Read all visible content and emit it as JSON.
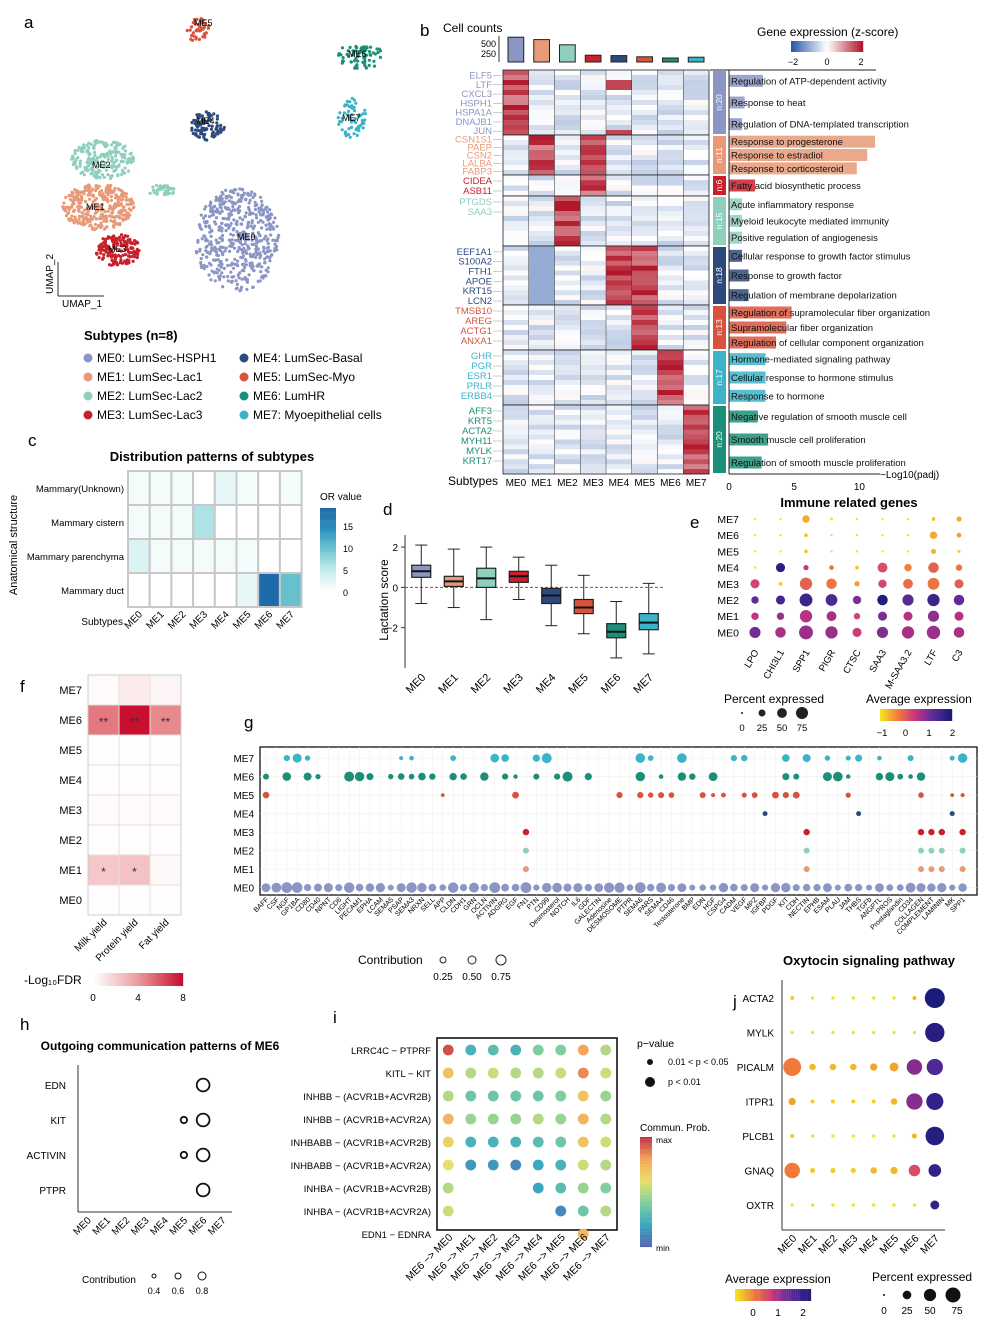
{
  "panel_labels": {
    "a": "a",
    "b": "b",
    "c": "c",
    "d": "d",
    "e": "e",
    "f": "f",
    "g": "g",
    "h": "h",
    "i": "i",
    "j": "j"
  },
  "umap": {
    "axis_x": "UMAP_1",
    "axis_y": "UMAP_2",
    "cluster_labels": [
      "ME0",
      "ME1",
      "ME2",
      "ME3",
      "ME4",
      "ME5",
      "ME6",
      "ME7"
    ]
  },
  "subtypes": {
    "title": "Subtypes (n=8)",
    "items": [
      {
        "label": "ME0: LumSec-HSPH1",
        "color": "#8b96c4"
      },
      {
        "label": "ME1: LumSec-Lac1",
        "color": "#e89a78"
      },
      {
        "label": "ME2: LumSec-Lac2",
        "color": "#8fcfbe"
      },
      {
        "label": "ME3: LumSec-Lac3",
        "color": "#c9202b"
      },
      {
        "label": "ME4: LumSec-Basal",
        "color": "#2e4a7d"
      },
      {
        "label": "ME5: LumSec-Myo",
        "color": "#d9533c"
      },
      {
        "label": "ME6: LumHR",
        "color": "#1b8f77"
      },
      {
        "label": "ME7: Myoepithelial cells",
        "color": "#3bb3c8"
      }
    ]
  },
  "heatmap_b": {
    "cell_counts_label": "Cell counts",
    "count_ticks": [
      "500",
      "250"
    ],
    "expr_title": "Gene expression (z-score)",
    "expr_ticks": [
      "−2",
      "0",
      "2"
    ],
    "subtypes_label": "Subtypes",
    "columns": [
      "ME0",
      "ME1",
      "ME2",
      "ME3",
      "ME4",
      "ME5",
      "ME6",
      "ME7"
    ],
    "xlabel": "−Log10(padj)",
    "xticks": [
      "0",
      "5",
      "10"
    ],
    "gene_groups": [
      {
        "n": "n:20",
        "color": "#8b96c4",
        "genes": [
          "ELF5",
          "LTF",
          "CXCL3",
          "HSPH1",
          "HSPA1A",
          "DNAJB1",
          "JUN"
        ],
        "terms": [
          "Regulation of ATP-dependent activity",
          "Response to heat",
          "Regulation of DNA-templated transcription"
        ],
        "pvals": [
          2.6,
          1.2,
          1.0
        ]
      },
      {
        "n": "n:11",
        "color": "#e89a78",
        "genes": [
          "CSN1S1",
          "PAEP",
          "CSN2",
          "LALBA",
          "FABP3"
        ],
        "terms": [
          "Response to progesterone",
          "Response to estradiol",
          "Response to corticosteroid"
        ],
        "pvals": [
          11.2,
          10.6,
          9.8
        ]
      },
      {
        "n": "n:6",
        "color": "#c9202b",
        "genes": [
          "CIDEA",
          "ASB11"
        ],
        "terms": [
          "Fatty acid biosynthetic process"
        ],
        "pvals": [
          2.0
        ]
      },
      {
        "n": "n:15",
        "color": "#8fcfbe",
        "genes": [
          "PTGDS",
          "SAA3"
        ],
        "terms": [
          "Acute inflammatory response",
          "Myeloid leukocyte mediated immunity",
          "Positive regulation of angiogenesis"
        ],
        "pvals": [
          1.0,
          1.0,
          1.0
        ]
      },
      {
        "n": "n:18",
        "color": "#2e4a7d",
        "genes": [
          "EEF1A1",
          "S100A2",
          "FTH1",
          "APOE",
          "KRT15",
          "LCN2"
        ],
        "terms": [
          "Cellular response to growth factor stimulus",
          "Response to growth factor",
          "Regulation of membrane depolarization"
        ],
        "pvals": [
          1.0,
          1.5,
          1.5
        ]
      },
      {
        "n": "n:13",
        "color": "#d9533c",
        "genes": [
          "TMSB10",
          "AREG",
          "ACTG1",
          "ANXA1"
        ],
        "terms": [
          "Regulation of supramolecular fiber organization",
          "Supramolecular fiber organization",
          "Regulation of cellular component organization"
        ],
        "pvals": [
          4.8,
          4.4,
          3.6
        ]
      },
      {
        "n": "n:17",
        "color": "#3bb3c8",
        "genes": [
          "GHR",
          "PGR",
          "ESR1",
          "PRLR",
          "ERBB4"
        ],
        "terms": [
          "Hormone-mediated signaling pathway",
          "Cellular response to hormone stimulus",
          "Response to hormone"
        ],
        "pvals": [
          2.8,
          2.8,
          2.8
        ]
      },
      {
        "n": "n:20",
        "color": "#1b8f77",
        "genes": [
          "AFF3",
          "KRT5",
          "ACTA2",
          "MYH11",
          "MYLK",
          "KRT17"
        ],
        "terms": [
          "Negative regulation of smooth muscle cell",
          "Smooth muscle cell proliferation",
          "Regulation of smooth muscle proliferation"
        ],
        "pvals": [
          2.2,
          3.0,
          2.5
        ]
      }
    ]
  },
  "chart_data": [
    {
      "panel": "b-cell-counts",
      "type": "bar",
      "categories": [
        "ME0",
        "ME1",
        "ME2",
        "ME3",
        "ME4",
        "ME5",
        "ME6",
        "ME7"
      ],
      "values": [
        620,
        560,
        430,
        170,
        160,
        130,
        100,
        120
      ],
      "colors": [
        "#8b96c4",
        "#e89a78",
        "#8fcfbe",
        "#c9202b",
        "#2e4a7d",
        "#d9533c",
        "#1b8f77",
        "#3bb3c8"
      ],
      "ylabel": "Cell counts",
      "ylim": [
        0,
        650
      ]
    },
    {
      "panel": "c",
      "type": "heatmap",
      "title": "Distribution patterns of subtypes",
      "ylabel": "Anatomical structure",
      "xlabel": "Subtypes",
      "rows": [
        "Mammary(Unknown)",
        "Mammary cistern",
        "Mammary parenchyma",
        "Mammary duct"
      ],
      "columns": [
        "ME0",
        "ME1",
        "ME2",
        "ME3",
        "ME4",
        "ME5",
        "ME6",
        "ME7"
      ],
      "values": [
        [
          1,
          1,
          1,
          0,
          2,
          1,
          0,
          1
        ],
        [
          1,
          1,
          1,
          6,
          0,
          0,
          0,
          0
        ],
        [
          3,
          1,
          1,
          1,
          1,
          1,
          0,
          0
        ],
        [
          0,
          0,
          0,
          0,
          0,
          2,
          19,
          10
        ]
      ],
      "legend_title": "OR value",
      "legend_ticks": [
        "15",
        "10",
        "5",
        "0"
      ]
    },
    {
      "panel": "d",
      "type": "box",
      "ylabel": "Lactation score",
      "categories": [
        "ME0",
        "ME1",
        "ME2",
        "ME3",
        "ME4",
        "ME5",
        "ME6",
        "ME7"
      ],
      "boxes": [
        {
          "min": -0.8,
          "q1": 0.5,
          "median": 0.8,
          "q3": 1.1,
          "max": 2.1
        },
        {
          "min": -1.0,
          "q1": 0.05,
          "median": 0.3,
          "q3": 0.55,
          "max": 1.9
        },
        {
          "min": -1.6,
          "q1": 0.0,
          "median": 0.45,
          "q3": 0.95,
          "max": 2.0
        },
        {
          "min": -0.6,
          "q1": 0.25,
          "median": 0.55,
          "q3": 0.8,
          "max": 1.5
        },
        {
          "min": -1.9,
          "q1": -0.8,
          "median": -0.4,
          "q3": -0.05,
          "max": 1.1
        },
        {
          "min": -2.3,
          "q1": -1.3,
          "median": -1.0,
          "q3": -0.6,
          "max": 0.6
        },
        {
          "min": -3.5,
          "q1": -2.5,
          "median": -2.2,
          "q3": -1.8,
          "max": -0.7
        },
        {
          "min": -3.3,
          "q1": -2.1,
          "median": -1.75,
          "q3": -1.3,
          "max": 0.2
        }
      ],
      "yticks": [
        "2",
        "0",
        "−2"
      ],
      "ylim": [
        -4,
        2.6
      ]
    },
    {
      "panel": "e",
      "type": "dot",
      "title": "Immune related genes",
      "genes": [
        "LPO",
        "CHI3L1",
        "SPP1",
        "PIGR",
        "CTSC",
        "SAA3",
        "M-SAA3.2",
        "LTF",
        "C3"
      ],
      "rows": [
        "ME7",
        "ME6",
        "ME5",
        "ME4",
        "ME3",
        "ME2",
        "ME1",
        "ME0"
      ],
      "pct": [
        [
          2,
          2,
          20,
          3,
          2,
          2,
          2,
          5,
          10
        ],
        [
          2,
          2,
          5,
          2,
          2,
          2,
          2,
          20,
          8
        ],
        [
          2,
          2,
          5,
          2,
          2,
          2,
          2,
          10,
          3
        ],
        [
          2,
          30,
          10,
          8,
          5,
          35,
          20,
          40,
          15
        ],
        [
          30,
          5,
          55,
          40,
          10,
          25,
          35,
          50,
          30
        ],
        [
          20,
          30,
          60,
          50,
          25,
          40,
          45,
          55,
          40
        ],
        [
          20,
          20,
          55,
          35,
          15,
          30,
          30,
          45,
          30
        ],
        [
          45,
          40,
          70,
          55,
          30,
          45,
          55,
          65,
          40
        ]
      ],
      "avg": [
        [
          -1,
          -1,
          -0.6,
          -1,
          -1,
          -1,
          -1,
          -0.8,
          -0.6
        ],
        [
          -1,
          -1,
          -0.8,
          -1,
          -1,
          -1,
          -1,
          -0.6,
          -0.5
        ],
        [
          -1,
          -1,
          -0.8,
          -1,
          -1,
          -1,
          -1,
          -0.7,
          -0.8
        ],
        [
          -1,
          1.8,
          0.5,
          -0.2,
          -0.8,
          0.2,
          -0.3,
          0.0,
          -0.2
        ],
        [
          0.3,
          -0.8,
          0.0,
          -0.2,
          -0.5,
          0.3,
          -0.1,
          -0.2,
          0.0
        ],
        [
          1.2,
          1.5,
          1.6,
          1.4,
          1.0,
          1.9,
          1.3,
          1.6,
          1.2
        ],
        [
          0.5,
          0.8,
          0.6,
          0.7,
          0.3,
          1.0,
          0.6,
          0.9,
          0.6
        ],
        [
          1.1,
          0.7,
          0.8,
          0.8,
          0.4,
          1.0,
          0.7,
          0.8,
          0.7
        ]
      ],
      "pct_title": "Percent expressed",
      "pct_ticks": [
        "0",
        "25",
        "50",
        "75"
      ],
      "avg_title": "Average expression",
      "avg_ticks": [
        "−1",
        "0",
        "1",
        "2"
      ]
    },
    {
      "panel": "f",
      "type": "heatmap",
      "rows": [
        "ME7",
        "ME6",
        "ME5",
        "ME4",
        "ME3",
        "ME2",
        "ME1",
        "ME0"
      ],
      "columns": [
        "Milk yield",
        "Protein yield",
        "Fat yield"
      ],
      "values": [
        [
          0.2,
          0.8,
          0.4
        ],
        [
          5,
          8,
          4.5
        ],
        [
          0.1,
          0.1,
          0.1
        ],
        [
          0.1,
          0.1,
          0.1
        ],
        [
          0.2,
          0.2,
          0.2
        ],
        [
          0.1,
          0.1,
          0.1
        ],
        [
          2.2,
          2.4,
          0.3
        ],
        [
          0.1,
          0.1,
          0.1
        ]
      ],
      "annotations": [
        [
          "",
          "",
          ""
        ],
        [
          "**",
          "**",
          "**"
        ],
        [
          "",
          "",
          ""
        ],
        [
          "",
          "",
          ""
        ],
        [
          "",
          "",
          ""
        ],
        [
          "",
          "",
          ""
        ],
        [
          "*",
          "*",
          ""
        ],
        [
          "",
          "",
          ""
        ]
      ],
      "legend_title": "-Log₁₀FDR",
      "legend_ticks": [
        "0",
        "4",
        "8"
      ],
      "legend_range": [
        0,
        8
      ]
    },
    {
      "panel": "g",
      "type": "dot",
      "rows": [
        "ME7",
        "ME6",
        "ME5",
        "ME4",
        "ME3",
        "ME2",
        "ME1",
        "ME0"
      ],
      "pathways": [
        "BAFF",
        "CSF",
        "NGF",
        "GP1BA",
        "CD80",
        "CD40",
        "NPNT",
        "CD6",
        "LIGHT",
        "PECAM1",
        "EPHA",
        "LCAM",
        "SEMA5",
        "PSAP",
        "SEMA3",
        "NRXN",
        "SELL",
        "APP",
        "CLDN",
        "CDH1",
        "GRN",
        "OCLN",
        "ACTIVIN",
        "ADGRG",
        "EGF",
        "FN1",
        "PTN",
        "CD99",
        "Desmosterol",
        "NOTCH",
        "IL6",
        "GDF",
        "GALECTIN",
        "Adenosine",
        "DESMOSOME",
        "PTPR",
        "SEMA6",
        "PARS",
        "SEMA4",
        "CD46",
        "Testosterone",
        "BMP",
        "EDN",
        "HGF",
        "CSPG4",
        "CADM",
        "VEGF",
        "MPZ",
        "IGFBP",
        "PDGF",
        "KIT",
        "CDH",
        "NECTIN",
        "EPHB",
        "ESAM",
        "PLAU",
        "JAM",
        "THBS",
        "TGFb",
        "ANGPTL",
        "PROS",
        "Prostaglandin",
        "CD34",
        "COLLAGEN",
        "COMPLEMENT",
        "LAMININ",
        "MK",
        "SPP1"
      ],
      "size_title": "Contribution",
      "size_ticks": [
        "0.25",
        "0.50",
        "0.75"
      ]
    },
    {
      "panel": "h",
      "type": "dot",
      "title": "Outgoing communication patterns of ME6",
      "rows": [
        "EDN",
        "KIT",
        "ACTIVIN",
        "PTPR"
      ],
      "columns": [
        "ME0",
        "ME1",
        "ME2",
        "ME3",
        "ME4",
        "ME5",
        "ME6",
        "ME7"
      ],
      "values": [
        [
          0,
          0,
          0,
          0,
          0,
          0,
          0.8,
          0
        ],
        [
          0,
          0,
          0,
          0,
          0,
          0.4,
          0.8,
          0
        ],
        [
          0,
          0,
          0,
          0,
          0,
          0.4,
          0.8,
          0
        ],
        [
          0,
          0,
          0,
          0,
          0,
          0,
          0.8,
          0
        ]
      ],
      "size_title": "Contribution",
      "size_ticks": [
        "0.4",
        "0.6",
        "0.8"
      ]
    },
    {
      "panel": "i",
      "type": "dot",
      "rows": [
        "LRRC4C − PTPRF",
        "KITL − KIT",
        "INHBB − (ACVR1B+ACVR2B)",
        "INHBB − (ACVR1B+ACVR2A)",
        "INHBABB − (ACVR1B+ACVR2B)",
        "INHBABB − (ACVR1B+ACVR2A)",
        "INHBA − (ACVR1B+ACVR2B)",
        "INHBA − (ACVR1B+ACVR2A)",
        "EDN1 − EDNRA"
      ],
      "columns": [
        "ME6 −> ME0",
        "ME6 −> ME1",
        "ME6 −> ME2",
        "ME6 −> ME3",
        "ME6 −> ME4",
        "ME6 −> ME5",
        "ME6 −> ME6",
        "ME6 −> ME7"
      ],
      "prob": [
        [
          0.95,
          0.25,
          0.3,
          0.25,
          0.4,
          0.4,
          0.8,
          0.5
        ],
        [
          0.7,
          0.5,
          0.55,
          0.5,
          0.5,
          0.55,
          0.85,
          0.55
        ],
        [
          0.5,
          0.35,
          0.35,
          0.35,
          0.35,
          0.4,
          0.7,
          0.45
        ],
        [
          0.75,
          0.45,
          0.45,
          0.45,
          0.5,
          0.45,
          0.75,
          0.5
        ],
        [
          0.65,
          0.25,
          0.25,
          0.25,
          0.3,
          0.35,
          0.7,
          0.55
        ],
        [
          0.6,
          0.15,
          0.15,
          0.1,
          0.2,
          0.25,
          0.55,
          0.5
        ],
        [
          0.5,
          null,
          null,
          null,
          0.2,
          0.3,
          0.45,
          0.4
        ],
        [
          0.55,
          null,
          null,
          null,
          null,
          0.1,
          0.35,
          0.5
        ],
        [
          null,
          null,
          null,
          null,
          null,
          null,
          0.75,
          null
        ]
      ],
      "pvalue_title": "p−value",
      "pvalue_items": [
        "0.01 < p < 0.05",
        "p < 0.01"
      ],
      "prob_title": "Commun. Prob.",
      "prob_ticks": [
        "max",
        "min"
      ]
    },
    {
      "panel": "j",
      "type": "dot",
      "title": "Oxytocin signaling pathway",
      "rows": [
        "ACTA2",
        "MYLK",
        "PICALM",
        "ITPR1",
        "PLCB1",
        "GNAQ",
        "OXTR"
      ],
      "columns": [
        "ME0",
        "ME1",
        "ME2",
        "ME3",
        "ME4",
        "ME5",
        "ME6",
        "ME7"
      ],
      "pct": [
        [
          3,
          2,
          2,
          2,
          2,
          2,
          3,
          75
        ],
        [
          2,
          2,
          2,
          2,
          2,
          2,
          2,
          70
        ],
        [
          60,
          8,
          8,
          8,
          10,
          15,
          45,
          50
        ],
        [
          10,
          3,
          3,
          3,
          3,
          8,
          50,
          55
        ],
        [
          3,
          2,
          2,
          2,
          2,
          2,
          5,
          65
        ],
        [
          45,
          5,
          5,
          5,
          8,
          10,
          25,
          30
        ],
        [
          2,
          2,
          2,
          2,
          2,
          2,
          2,
          15
        ]
      ],
      "avg": [
        [
          0.1,
          0,
          0,
          0,
          0,
          0,
          0.2,
          2.0
        ],
        [
          0,
          0,
          0,
          0,
          0,
          0,
          0,
          1.9
        ],
        [
          0.5,
          0.2,
          0.2,
          0.2,
          0.3,
          0.3,
          1.3,
          1.6
        ],
        [
          0.3,
          0.1,
          0.1,
          0.1,
          0.1,
          0.2,
          1.3,
          1.8
        ],
        [
          0.1,
          0,
          0,
          0,
          0,
          0,
          0.2,
          1.9
        ],
        [
          0.5,
          0.1,
          0.1,
          0.1,
          0.2,
          0.2,
          0.8,
          1.8
        ],
        [
          0,
          0,
          0,
          0,
          0,
          0,
          0,
          1.8
        ]
      ],
      "avg_title": "Average expression",
      "avg_ticks": [
        "0",
        "1",
        "2"
      ],
      "pct_title": "Percent expressed",
      "pct_ticks": [
        "0",
        "25",
        "50",
        "75"
      ]
    }
  ]
}
